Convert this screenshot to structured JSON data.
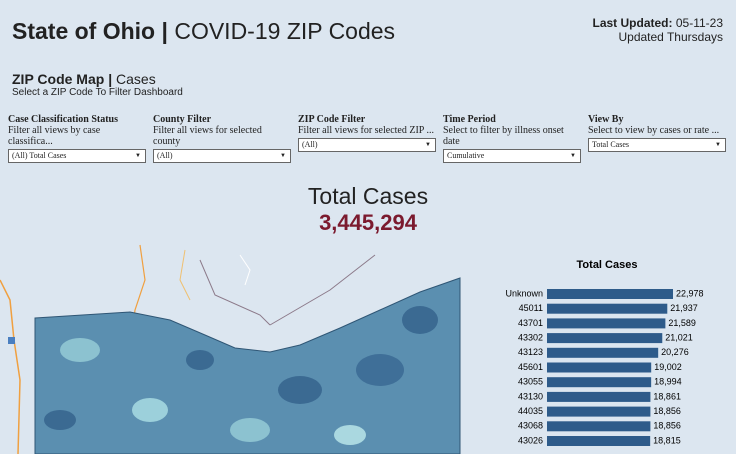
{
  "header": {
    "title_main": "State of Ohio",
    "title_separator": "|",
    "title_rest": "COVID-19 ZIP Codes",
    "last_updated_label": "Last Updated:",
    "last_updated_value": "05-11-23",
    "update_schedule": "Updated Thursdays"
  },
  "section": {
    "title_main": "ZIP Code Map",
    "title_separator": "|",
    "title_rest": "Cases",
    "subtitle": "Select a ZIP Code To Filter Dashboard"
  },
  "filters": [
    {
      "label": "Case Classification Status",
      "description": "Filter all views by case classifica...",
      "value": "(All) Total Cases"
    },
    {
      "label": "County Filter",
      "description": "Filter all views for selected county",
      "value": "(All)"
    },
    {
      "label": "ZIP Code Filter",
      "description": "Filter all views for selected ZIP ...",
      "value": "(All)"
    },
    {
      "label": "Time Period",
      "description": "Select to filter by illness onset date",
      "value": "Cumulative"
    },
    {
      "label": "View By",
      "description": "Select to view by cases or rate ...",
      "value": "Total Cases"
    }
  ],
  "summary": {
    "label": "Total Cases",
    "value": "3,445,294"
  },
  "chart_data": {
    "type": "bar",
    "title": "Total Cases",
    "color": "#2e5b8a",
    "categories": [
      "Unknown",
      "45011",
      "43701",
      "43302",
      "43123",
      "45601",
      "43055",
      "43130",
      "44035",
      "43068",
      "43026"
    ],
    "values": [
      22978,
      21937,
      21589,
      21021,
      20276,
      19002,
      18994,
      18861,
      18856,
      18856,
      18815
    ],
    "value_labels": [
      "22,978",
      "21,937",
      "21,589",
      "21,021",
      "20,276",
      "19,002",
      "18,994",
      "18,861",
      "18,856",
      "18,856",
      "18,815"
    ]
  }
}
